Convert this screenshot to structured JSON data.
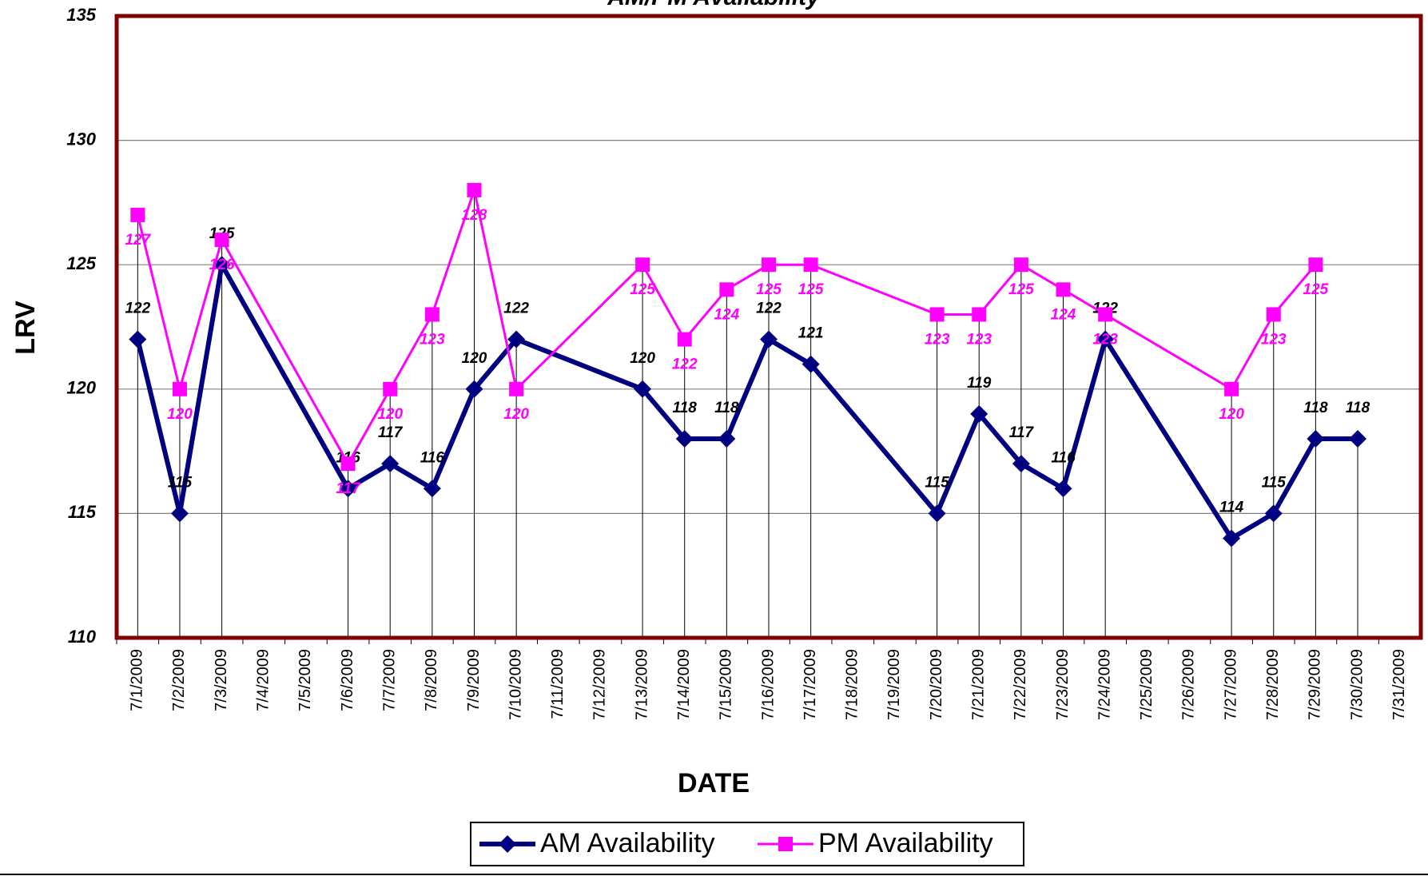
{
  "chart_data": {
    "type": "line",
    "title": "AM/PM Availability",
    "x_label": "DATE",
    "y_label": "LRV",
    "x": [
      "7/1/2009",
      "7/2/2009",
      "7/3/2009",
      "7/6/2009",
      "7/7/2009",
      "7/8/2009",
      "7/9/2009",
      "7/10/2009",
      "7/13/2009",
      "7/14/2009",
      "7/15/2009",
      "7/16/2009",
      "7/17/2009",
      "7/20/2009",
      "7/21/2009",
      "7/22/2009",
      "7/23/2009",
      "7/24/2009",
      "7/27/2009",
      "7/28/2009",
      "7/29/2009",
      "7/30/2009"
    ],
    "xticks": [
      "7/1/2009",
      "7/2/2009",
      "7/3/2009",
      "7/4/2009",
      "7/5/2009",
      "7/6/2009",
      "7/7/2009",
      "7/8/2009",
      "7/9/2009",
      "7/10/2009",
      "7/11/2009",
      "7/12/2009",
      "7/13/2009",
      "7/14/2009",
      "7/15/2009",
      "7/16/2009",
      "7/17/2009",
      "7/18/2009",
      "7/19/2009",
      "7/20/2009",
      "7/21/2009",
      "7/22/2009",
      "7/23/2009",
      "7/24/2009",
      "7/25/2009",
      "7/26/2009",
      "7/27/2009",
      "7/28/2009",
      "7/29/2009",
      "7/30/2009",
      "7/31/2009"
    ],
    "series": [
      {
        "name": "AM Availability",
        "color": "#000080",
        "marker": "diamond",
        "values": [
          122,
          115,
          125,
          116,
          117,
          116,
          120,
          122,
          120,
          118,
          118,
          122,
          121,
          115,
          119,
          117,
          116,
          122,
          114,
          115,
          118,
          118
        ]
      },
      {
        "name": "PM Availability",
        "color": "#ff00ff",
        "marker": "square",
        "values": [
          127,
          120,
          126,
          117,
          120,
          123,
          128,
          120,
          125,
          122,
          124,
          125,
          125,
          123,
          123,
          125,
          124,
          123,
          120,
          123,
          125,
          null
        ]
      }
    ],
    "ylim": [
      110,
      135
    ],
    "yticks": [
      110,
      115,
      120,
      125,
      130,
      135
    ],
    "grid": true,
    "drop_lines": true,
    "legend": "bottom",
    "frame_color": "#800000"
  }
}
